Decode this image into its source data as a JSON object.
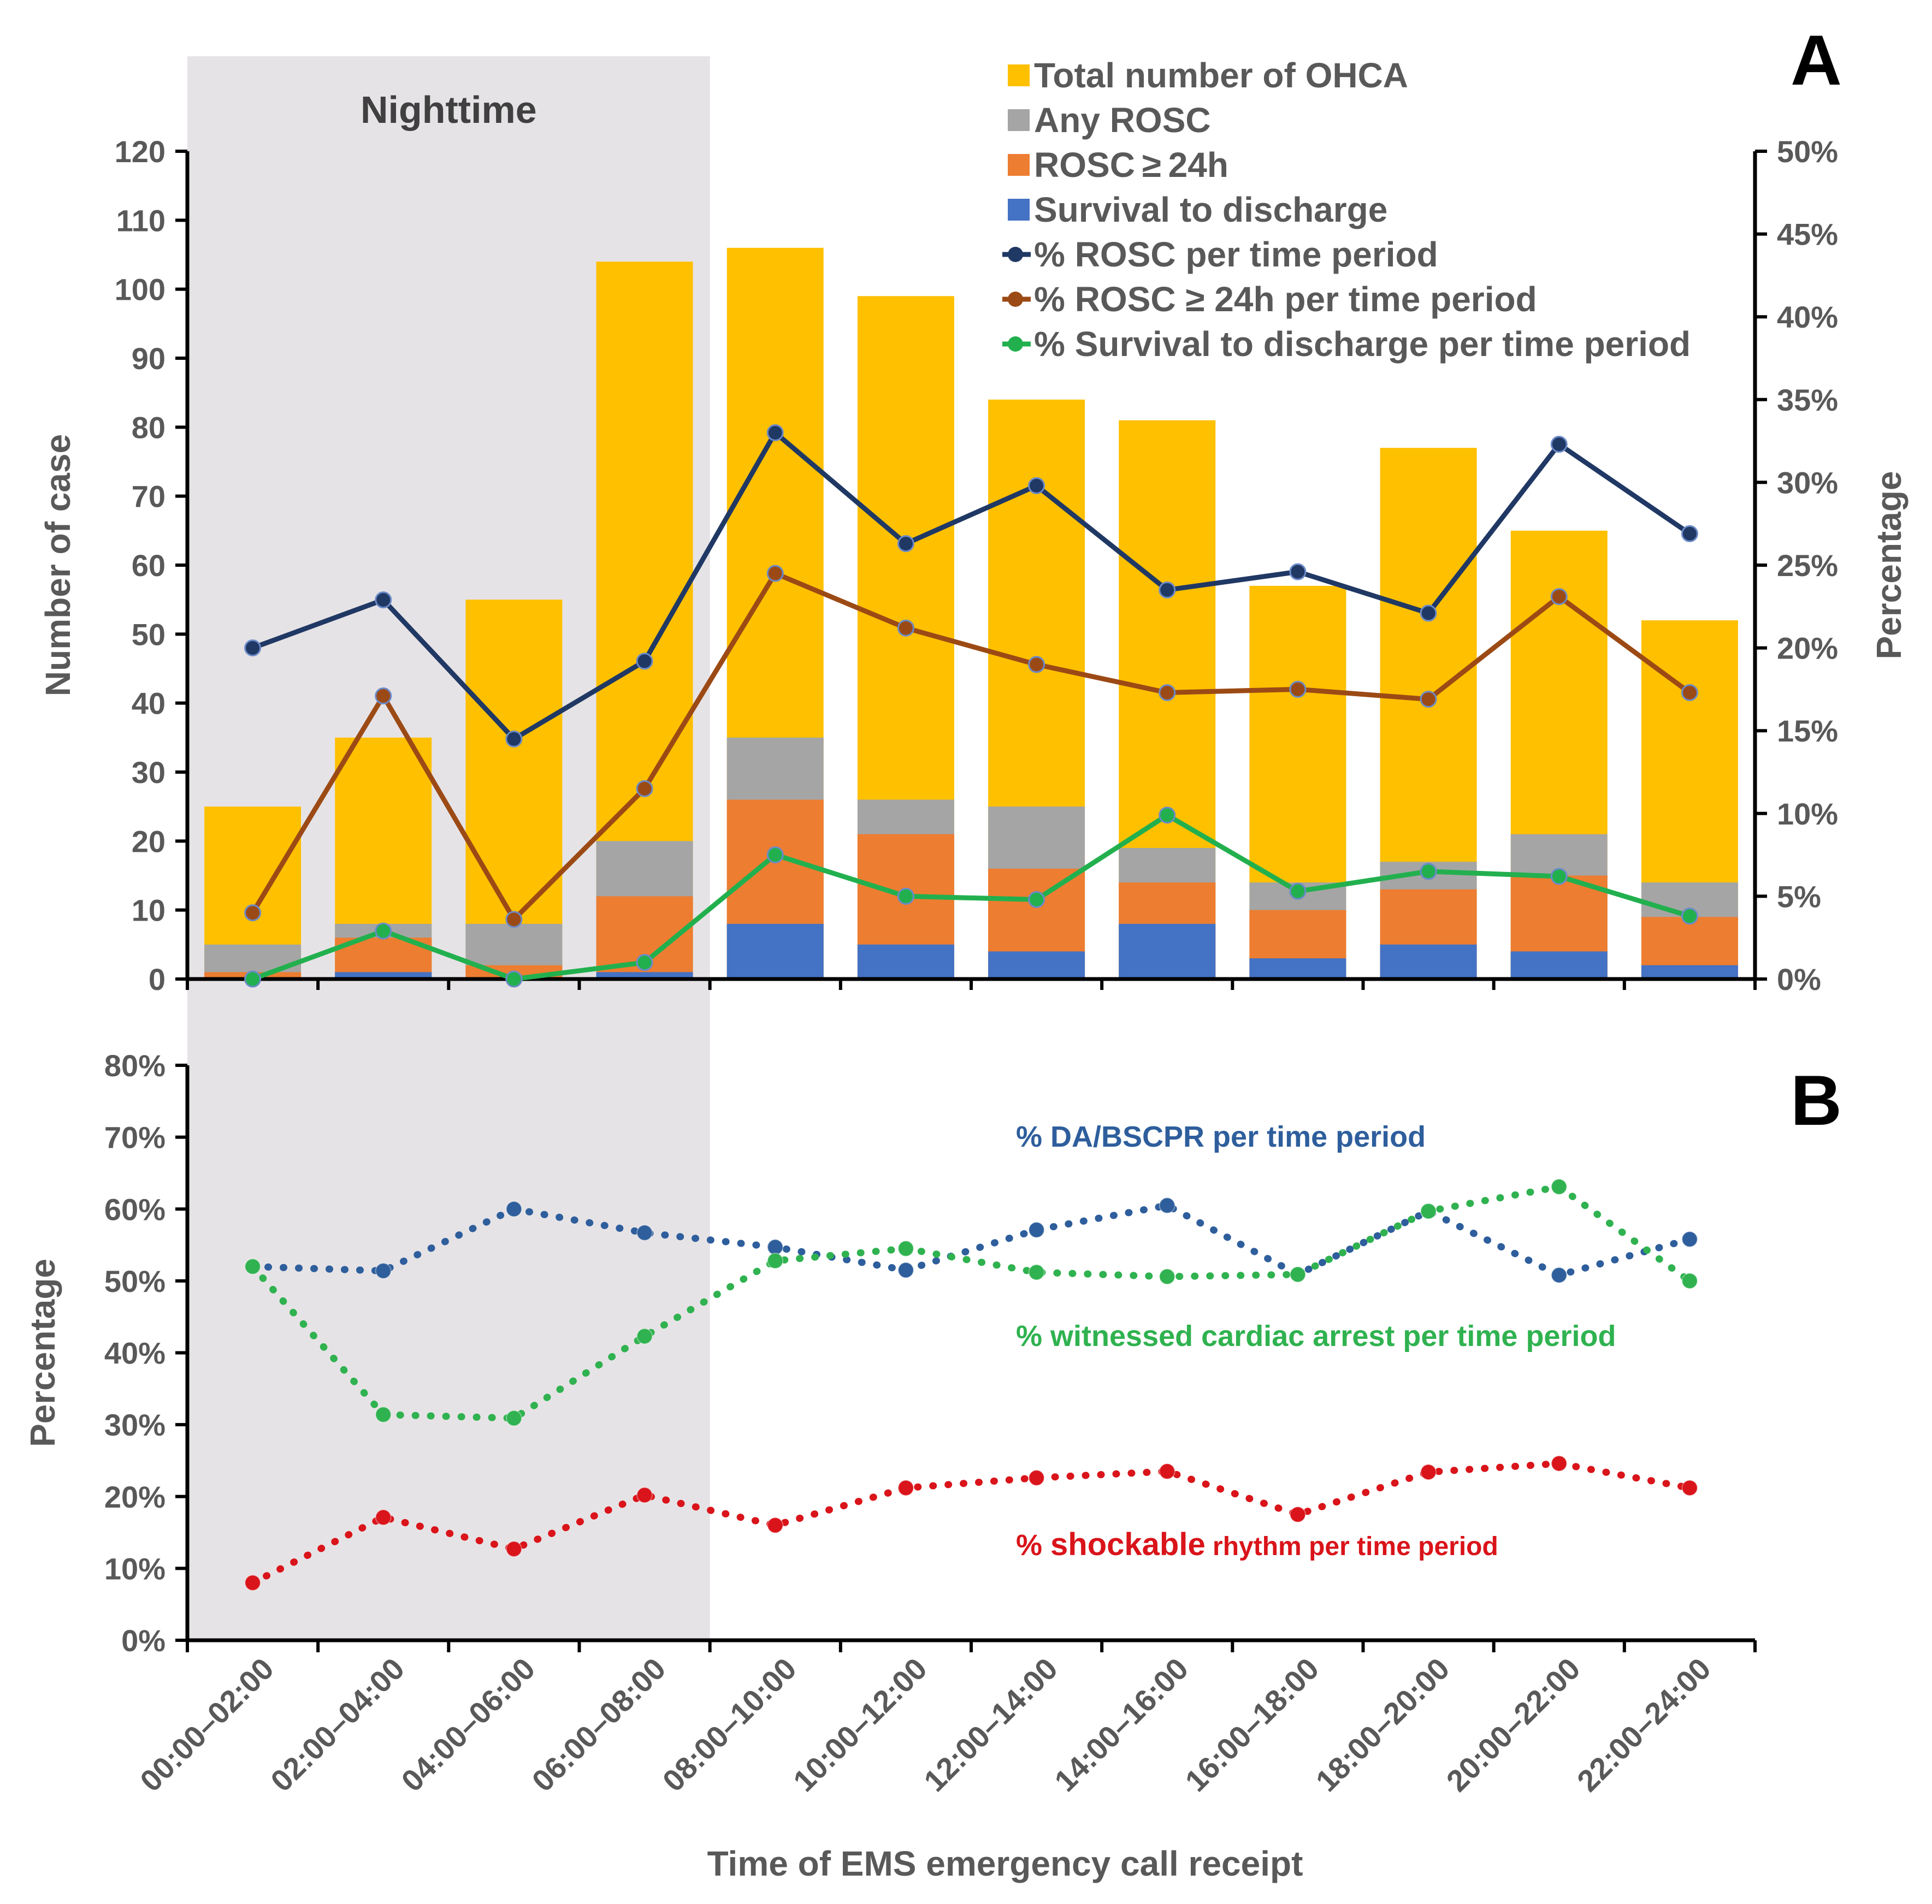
{
  "nighttime_label": "Nighttime",
  "panel_a_letter": "A",
  "panel_b_letter": "B",
  "x_axis_title": "Time of EMS emergency call receipt",
  "colors": {
    "total": "#ffc000",
    "any_rosc": "#a5a5a5",
    "rosc24": "#ed7d31",
    "survival": "#4472c4",
    "pct_rosc": "#203864",
    "pct_rosc24": "#9c4a15",
    "pct_survival": "#22b04e",
    "da_bscpr": "#2e5e9c",
    "witnessed": "#2fb24f",
    "shockable": "#d9141a",
    "nighttime_bg": "#e6e3e6",
    "nighttime_span": 4
  },
  "chart_data": [
    {
      "type": "bar",
      "panel": "A",
      "categories": [
        "00:00–02:00",
        "02:00–04:00",
        "04:00–06:00",
        "06:00–08:00",
        "08:00–10:00",
        "10:00–12:00",
        "12:00–14:00",
        "14:00–16:00",
        "16:00–18:00",
        "18:00–20:00",
        "20:00–22:00",
        "22:00–24:00"
      ],
      "ylabel": "Number of case",
      "ylim": [
        0,
        120
      ],
      "yticks": [
        0,
        10,
        20,
        30,
        40,
        50,
        60,
        70,
        80,
        90,
        100,
        110,
        120
      ],
      "y2label": "Percentage",
      "y2lim": [
        0,
        50
      ],
      "y2ticks": [
        "0%",
        "5%",
        "10%",
        "15%",
        "20%",
        "25%",
        "30%",
        "35%",
        "40%",
        "45%",
        "50%"
      ],
      "bar_series": [
        {
          "name": "Total number of OHCA",
          "color_key": "total",
          "values": [
            25,
            35,
            55,
            104,
            106,
            99,
            84,
            81,
            57,
            77,
            65,
            52
          ]
        },
        {
          "name": "Any ROSC",
          "color_key": "any_rosc",
          "values": [
            5,
            8,
            8,
            20,
            35,
            26,
            25,
            19,
            14,
            17,
            21,
            14
          ]
        },
        {
          "name": "ROSC ≥ 24h",
          "color_key": "rosc24",
          "values": [
            1,
            6,
            2,
            12,
            26,
            21,
            16,
            14,
            10,
            13,
            15,
            9
          ]
        },
        {
          "name": "Survival to discharge",
          "color_key": "survival",
          "values": [
            0,
            1,
            0,
            1,
            8,
            5,
            4,
            8,
            3,
            5,
            4,
            2
          ]
        }
      ],
      "line_series": [
        {
          "name": "% ROSC per time period",
          "color_key": "pct_rosc",
          "axis": "right",
          "values": [
            20.0,
            22.9,
            14.5,
            19.2,
            33.0,
            26.3,
            29.8,
            23.5,
            24.6,
            22.1,
            32.3,
            26.9
          ]
        },
        {
          "name": "% ROSC ≥ 24h per time period",
          "color_key": "pct_rosc24",
          "axis": "right",
          "values": [
            4.0,
            17.1,
            3.6,
            11.5,
            24.5,
            21.2,
            19.0,
            17.3,
            17.5,
            16.9,
            23.1,
            17.3
          ]
        },
        {
          "name": "% Survival to discharge per time period",
          "color_key": "pct_survival",
          "axis": "right",
          "values": [
            0.0,
            2.9,
            0.0,
            1.0,
            7.5,
            5.0,
            4.8,
            9.9,
            5.3,
            6.5,
            6.2,
            3.8
          ]
        }
      ]
    },
    {
      "type": "line",
      "panel": "B",
      "categories": [
        "00:00–02:00",
        "02:00–04:00",
        "04:00–06:00",
        "06:00–08:00",
        "08:00–10:00",
        "10:00–12:00",
        "12:00–14:00",
        "14:00–16:00",
        "16:00–18:00",
        "18:00–20:00",
        "20:00–22:00",
        "22:00–24:00"
      ],
      "ylabel": "Percentage",
      "ylim": [
        0,
        80
      ],
      "yticks": [
        "0%",
        "10%",
        "20%",
        "30%",
        "40%",
        "50%",
        "60%",
        "70%",
        "80%"
      ],
      "series": [
        {
          "name": "DA/BSCPR per time period",
          "color_key": "da_bscpr",
          "values": [
            52.0,
            51.4,
            60.0,
            56.7,
            54.7,
            51.5,
            57.1,
            60.5,
            50.9,
            59.7,
            50.8,
            55.8
          ]
        },
        {
          "name": "witnessed cardiac arrest per time period",
          "color_key": "witnessed",
          "values": [
            52.0,
            31.4,
            30.9,
            42.3,
            52.8,
            54.5,
            51.2,
            50.6,
            50.9,
            59.7,
            63.1,
            50.0
          ]
        },
        {
          "name": "shockable rhythm per time period",
          "color_key": "shockable",
          "values": [
            8.0,
            17.1,
            12.7,
            20.2,
            16.0,
            21.2,
            22.6,
            23.5,
            17.5,
            23.4,
            24.6,
            21.2
          ]
        }
      ],
      "annotations": [
        {
          "prefix": "%",
          "text": "DA/BSCPR per time period",
          "color_key": "da_bscpr"
        },
        {
          "prefix": "%",
          "text": "witnessed cardiac arrest per time period",
          "color_key": "witnessed"
        },
        {
          "prefix": "%",
          "text_bold": "shockable",
          "text_rest": " rhythm per time period",
          "color_key": "shockable"
        }
      ]
    }
  ]
}
